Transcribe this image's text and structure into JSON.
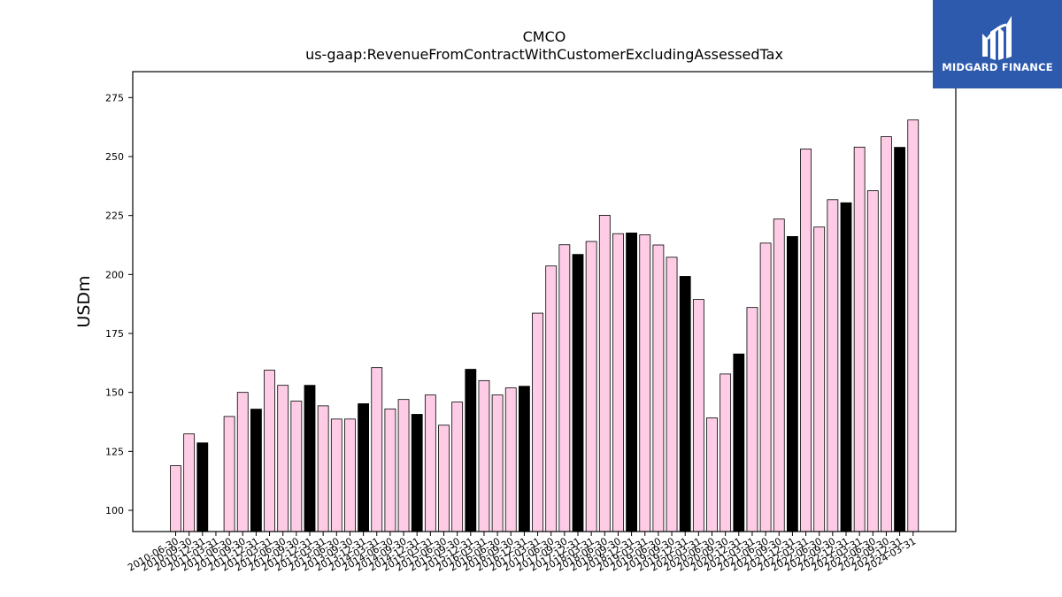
{
  "chart_data": {
    "type": "bar",
    "title": "CMCO",
    "subtitle": "us-gaap:RevenueFromContractWithCustomerExcludingAssessedTax",
    "ylabel": "USDm",
    "xlabel": "",
    "ylim": [
      91,
      286
    ],
    "yticks": [
      100,
      125,
      150,
      175,
      200,
      225,
      250,
      275
    ],
    "grid": false,
    "highlight_color": "#000000",
    "bar_color": "#ffcce6",
    "categories": [
      "2010-06-30",
      "2010-09-30",
      "2010-12-31",
      "2011-03-31",
      "2011-06-30",
      "2011-09-30",
      "2011-12-31",
      "2012-03-31",
      "2012-06-30",
      "2012-09-30",
      "2012-12-31",
      "2013-03-31",
      "2013-06-30",
      "2013-09-30",
      "2013-12-31",
      "2014-03-31",
      "2014-06-30",
      "2014-09-30",
      "2014-12-31",
      "2015-03-31",
      "2015-06-30",
      "2015-09-30",
      "2015-12-31",
      "2016-03-31",
      "2016-06-30",
      "2016-09-30",
      "2016-12-31",
      "2017-03-31",
      "2017-06-30",
      "2017-09-30",
      "2017-12-31",
      "2018-03-31",
      "2018-06-30",
      "2018-09-30",
      "2018-12-31",
      "2019-03-31",
      "2019-06-30",
      "2019-09-30",
      "2019-12-31",
      "2020-03-31",
      "2020-06-30",
      "2020-09-30",
      "2020-12-31",
      "2021-03-31",
      "2021-06-30",
      "2021-09-30",
      "2021-12-31",
      "2022-03-31",
      "2022-06-30",
      "2022-09-30",
      "2022-12-31",
      "2023-03-31",
      "2023-06-30",
      "2023-09-30",
      "2023-12-31",
      "2024-03-31"
    ],
    "values": [
      118.9,
      132.4,
      128.6,
      null,
      139.8,
      150.0,
      142.9,
      159.4,
      153.0,
      146.3,
      153.0,
      144.3,
      138.7,
      138.7,
      145.2,
      160.5,
      143.0,
      147.0,
      140.7,
      148.9,
      136.1,
      145.9,
      159.8,
      155.0,
      148.9,
      151.9,
      152.6,
      183.6,
      203.6,
      212.6,
      208.5,
      214.0,
      225.1,
      217.3,
      217.6,
      216.8,
      212.5,
      207.3,
      199.2,
      189.4,
      139.2,
      157.8,
      166.3,
      186.0,
      213.3,
      223.5,
      216.1,
      253.2,
      220.1,
      231.7,
      230.4,
      254.0,
      235.5,
      258.4,
      253.9,
      265.5
    ],
    "highlight": [
      false,
      false,
      true,
      false,
      false,
      false,
      true,
      false,
      false,
      false,
      true,
      false,
      false,
      false,
      true,
      false,
      false,
      false,
      true,
      false,
      false,
      false,
      true,
      false,
      false,
      false,
      true,
      false,
      false,
      false,
      true,
      false,
      false,
      false,
      true,
      false,
      false,
      false,
      true,
      false,
      false,
      false,
      true,
      false,
      false,
      false,
      true,
      false,
      false,
      false,
      true,
      false,
      false,
      false,
      true,
      false
    ]
  },
  "logo": {
    "text": "MIDGARD FINANCE",
    "background": "#2d5aad",
    "icon": "midgard-logo-icon"
  }
}
